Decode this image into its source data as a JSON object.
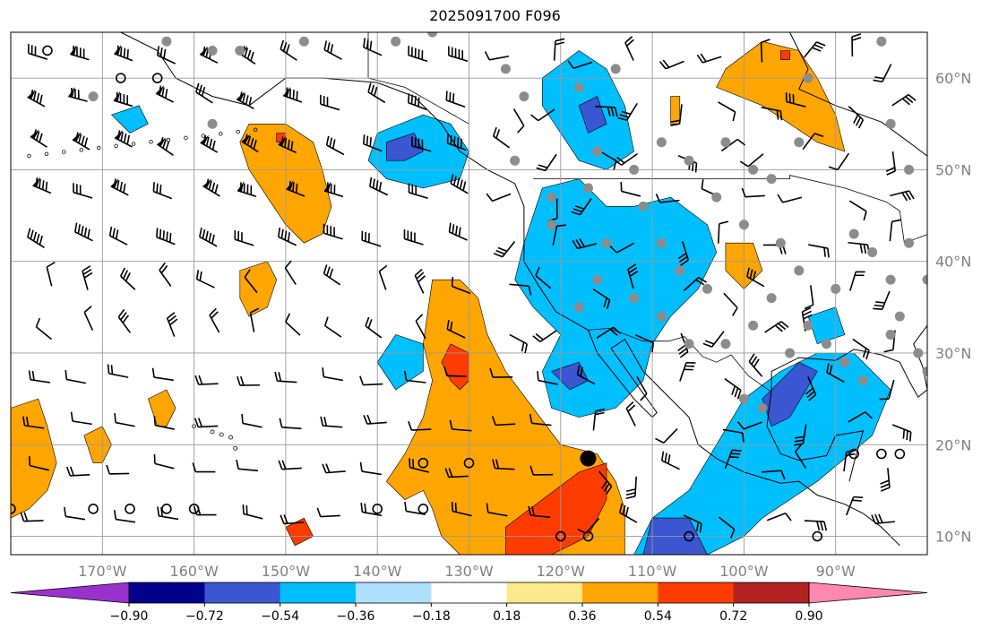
{
  "title": "2025091700 F096",
  "map": {
    "lon_range": [
      -180,
      -80
    ],
    "lat_range": [
      8,
      65
    ],
    "lon_ticks": [
      -170,
      -160,
      -150,
      -140,
      -130,
      -120,
      -110,
      -100,
      -90
    ],
    "lon_labels": [
      "170°W",
      "160°W",
      "150°W",
      "140°W",
      "130°W",
      "120°W",
      "110°W",
      "100°W",
      "90°W"
    ],
    "lat_ticks": [
      10,
      20,
      30,
      40,
      50,
      60
    ],
    "lat_labels": [
      "10°N",
      "20°N",
      "30°N",
      "40°N",
      "50°N",
      "60°N"
    ],
    "grid": true,
    "tick_label_color": "#808080"
  },
  "colorbar": {
    "levels": [
      "−0.90",
      "−0.72",
      "−0.54",
      "−0.36",
      "−0.18",
      "0.18",
      "0.36",
      "0.54",
      "0.72",
      "0.90"
    ],
    "colors": [
      "#9932cc",
      "#00008b",
      "#3a56d0",
      "#00bfff",
      "#b0e0ff",
      "#ffffff",
      "#ffe88a",
      "#ffa500",
      "#ff3c00",
      "#b22222",
      "#ff88b0"
    ],
    "extend": "both"
  },
  "fields": {
    "positive_regions": [
      {
        "name": "nw-pacific-blob",
        "color": "#ffa500",
        "points": [
          [
            -154,
            55
          ],
          [
            -150,
            55
          ],
          [
            -147,
            53
          ],
          [
            -146,
            50
          ],
          [
            -145,
            46
          ],
          [
            -146,
            43
          ],
          [
            -148,
            42
          ],
          [
            -150,
            44
          ],
          [
            -152,
            47
          ],
          [
            -154,
            50
          ],
          [
            -155,
            53
          ]
        ]
      },
      {
        "name": "nw-pacific-core",
        "color": "#ff3c00",
        "points": [
          [
            -151,
            54
          ],
          [
            -150,
            54
          ],
          [
            -150,
            53
          ],
          [
            -151,
            53
          ]
        ]
      },
      {
        "name": "hawaii-ne-blob",
        "color": "#ffa500",
        "points": [
          [
            -155,
            39
          ],
          [
            -152,
            40
          ],
          [
            -151,
            38
          ],
          [
            -152,
            35
          ],
          [
            -154,
            34
          ],
          [
            -155,
            36
          ]
        ]
      },
      {
        "name": "central-pacific-plume",
        "color": "#ffa500",
        "points": [
          [
            -134,
            38
          ],
          [
            -131,
            38
          ],
          [
            -129,
            36
          ],
          [
            -128,
            32
          ],
          [
            -126,
            28
          ],
          [
            -123,
            24
          ],
          [
            -120,
            20
          ],
          [
            -116,
            19
          ],
          [
            -114,
            16
          ],
          [
            -113,
            13
          ],
          [
            -113,
            8
          ],
          [
            -123,
            8
          ],
          [
            -128,
            8
          ],
          [
            -131,
            8
          ],
          [
            -133,
            10
          ],
          [
            -134,
            13
          ],
          [
            -135,
            15
          ],
          [
            -137,
            14
          ],
          [
            -139,
            16
          ],
          [
            -137,
            19
          ],
          [
            -135,
            23
          ],
          [
            -134,
            27
          ],
          [
            -135,
            31
          ]
        ]
      },
      {
        "name": "plume-core-north",
        "color": "#ff3c00",
        "points": [
          [
            -132,
            31
          ],
          [
            -130,
            30
          ],
          [
            -130,
            27
          ],
          [
            -131,
            26
          ],
          [
            -132,
            27
          ],
          [
            -133,
            29
          ]
        ]
      },
      {
        "name": "plume-core-south",
        "color": "#ff3c00",
        "points": [
          [
            -126,
            8
          ],
          [
            -126,
            11
          ],
          [
            -122,
            14
          ],
          [
            -118,
            17
          ],
          [
            -115,
            18
          ],
          [
            -115,
            14
          ],
          [
            -117,
            10
          ],
          [
            -119,
            9
          ],
          [
            -121,
            8
          ]
        ]
      },
      {
        "name": "west-pacific-strip",
        "color": "#ffa500",
        "points": [
          [
            -180,
            24
          ],
          [
            -177,
            25
          ],
          [
            -176,
            22
          ],
          [
            -175,
            18
          ],
          [
            -176,
            15
          ],
          [
            -178,
            13
          ],
          [
            -180,
            12
          ]
        ]
      },
      {
        "name": "west-pacific-bits",
        "color": "#ffa500",
        "points": [
          [
            -172,
            21
          ],
          [
            -170,
            22
          ],
          [
            -169,
            20
          ],
          [
            -170,
            18
          ],
          [
            -171,
            18
          ]
        ]
      },
      {
        "name": "southwest-bits",
        "color": "#ffa500",
        "points": [
          [
            -165,
            25
          ],
          [
            -163,
            26
          ],
          [
            -162,
            24
          ],
          [
            -163,
            22
          ],
          [
            -164,
            22
          ]
        ]
      },
      {
        "name": "canada-blob",
        "color": "#ffa500",
        "points": [
          [
            -102,
            61
          ],
          [
            -98,
            64
          ],
          [
            -94,
            63
          ],
          [
            -92,
            60
          ],
          [
            -90,
            56
          ],
          [
            -89,
            52
          ],
          [
            -92,
            53
          ],
          [
            -95,
            55
          ],
          [
            -98,
            57
          ],
          [
            -103,
            59
          ]
        ]
      },
      {
        "name": "canada-core",
        "color": "#ff3c00",
        "points": [
          [
            -96,
            63
          ],
          [
            -95,
            63
          ],
          [
            -95,
            62
          ],
          [
            -96,
            62
          ]
        ]
      },
      {
        "name": "idaho-bit",
        "color": "#ffa500",
        "points": [
          [
            -108,
            58
          ],
          [
            -107,
            58
          ],
          [
            -107,
            55
          ],
          [
            -108,
            55
          ]
        ]
      },
      {
        "name": "kansas-blob",
        "color": "#ffa500",
        "points": [
          [
            -102,
            42
          ],
          [
            -99,
            42
          ],
          [
            -98,
            39
          ],
          [
            -100,
            37
          ],
          [
            -102,
            39
          ]
        ]
      },
      {
        "name": "south-pacific-bit",
        "color": "#ff3c00",
        "points": [
          [
            -150,
            11
          ],
          [
            -148,
            12
          ],
          [
            -147,
            10
          ],
          [
            -149,
            9
          ]
        ]
      }
    ],
    "negative_regions": [
      {
        "name": "gulf-of-alaska",
        "color": "#00bfff",
        "points": [
          [
            -140,
            54
          ],
          [
            -135,
            56
          ],
          [
            -132,
            55
          ],
          [
            -130,
            52
          ],
          [
            -131,
            49
          ],
          [
            -135,
            48
          ],
          [
            -139,
            49
          ],
          [
            -141,
            51
          ]
        ]
      },
      {
        "name": "gulf-of-alaska-core",
        "color": "#3a56d0",
        "points": [
          [
            -139,
            53
          ],
          [
            -136,
            54
          ],
          [
            -135,
            52
          ],
          [
            -137,
            51
          ],
          [
            -139,
            51
          ]
        ]
      },
      {
        "name": "aleutian-bit",
        "color": "#00bfff",
        "points": [
          [
            -169,
            56
          ],
          [
            -166,
            57
          ],
          [
            -165,
            55
          ],
          [
            -167,
            54
          ]
        ]
      },
      {
        "name": "british-columbia",
        "color": "#00bfff",
        "points": [
          [
            -122,
            60
          ],
          [
            -118,
            63
          ],
          [
            -115,
            61
          ],
          [
            -113,
            57
          ],
          [
            -112,
            52
          ],
          [
            -115,
            50
          ],
          [
            -118,
            51
          ],
          [
            -120,
            54
          ],
          [
            -122,
            57
          ]
        ]
      },
      {
        "name": "bc-core",
        "color": "#3a56d0",
        "points": [
          [
            -118,
            57
          ],
          [
            -116,
            58
          ],
          [
            -115,
            55
          ],
          [
            -117,
            54
          ]
        ]
      },
      {
        "name": "western-us",
        "color": "#00bfff",
        "points": [
          [
            -122,
            48
          ],
          [
            -118,
            49
          ],
          [
            -115,
            46
          ],
          [
            -112,
            46
          ],
          [
            -108,
            47
          ],
          [
            -104,
            44
          ],
          [
            -103,
            41
          ],
          [
            -105,
            37
          ],
          [
            -108,
            34
          ],
          [
            -110,
            31
          ],
          [
            -111,
            27
          ],
          [
            -114,
            24
          ],
          [
            -118,
            23
          ],
          [
            -121,
            24
          ],
          [
            -122,
            28
          ],
          [
            -120,
            32
          ],
          [
            -123,
            35
          ],
          [
            -125,
            38
          ],
          [
            -124,
            42
          ]
        ]
      },
      {
        "name": "western-us-core",
        "color": "#3a56d0",
        "points": [
          [
            -121,
            28
          ],
          [
            -118,
            29
          ],
          [
            -117,
            27
          ],
          [
            -119,
            26
          ]
        ]
      },
      {
        "name": "pacific-blue-spot",
        "color": "#00bfff",
        "points": [
          [
            -140,
            29
          ],
          [
            -138,
            32
          ],
          [
            -135,
            31
          ],
          [
            -135,
            28
          ],
          [
            -138,
            26
          ]
        ]
      },
      {
        "name": "mexico-central-america",
        "color": "#00bfff",
        "points": [
          [
            -112,
            8
          ],
          [
            -110,
            12
          ],
          [
            -106,
            15
          ],
          [
            -103,
            20
          ],
          [
            -100,
            25
          ],
          [
            -96,
            28
          ],
          [
            -92,
            30
          ],
          [
            -88,
            30
          ],
          [
            -84,
            26
          ],
          [
            -86,
            21
          ],
          [
            -92,
            16
          ],
          [
            -95,
            14
          ],
          [
            -98,
            12
          ],
          [
            -100,
            10
          ],
          [
            -104,
            8
          ]
        ]
      },
      {
        "name": "mexico-core",
        "color": "#3a56d0",
        "points": [
          [
            -111,
            8
          ],
          [
            -110,
            12
          ],
          [
            -106,
            12
          ],
          [
            -104,
            8
          ]
        ]
      },
      {
        "name": "gulf-core",
        "color": "#3a56d0",
        "points": [
          [
            -98,
            25
          ],
          [
            -94,
            29
          ],
          [
            -92,
            28
          ],
          [
            -95,
            23
          ],
          [
            -97,
            22
          ]
        ]
      },
      {
        "name": "east-us-spot",
        "color": "#00bfff",
        "points": [
          [
            -93,
            34
          ],
          [
            -90,
            35
          ],
          [
            -89,
            32
          ],
          [
            -92,
            31
          ]
        ]
      }
    ]
  },
  "markers": {
    "gray_dots": [
      [
        -163,
        64
      ],
      [
        -158,
        63
      ],
      [
        -148,
        64
      ],
      [
        -138,
        64
      ],
      [
        -134,
        65
      ],
      [
        -126,
        61
      ],
      [
        -124,
        58
      ],
      [
        -118,
        59
      ],
      [
        -114,
        61
      ],
      [
        -116,
        52
      ],
      [
        -112,
        50
      ],
      [
        -109,
        53
      ],
      [
        -106,
        51
      ],
      [
        -102,
        53
      ],
      [
        -99,
        50
      ],
      [
        -97,
        49
      ],
      [
        -93,
        60
      ],
      [
        -94,
        53
      ],
      [
        -85,
        64
      ],
      [
        -84,
        55
      ],
      [
        -82,
        50
      ],
      [
        -171,
        58
      ],
      [
        -158,
        55
      ],
      [
        -155,
        63
      ],
      [
        -125,
        51
      ],
      [
        -121,
        47
      ],
      [
        -117,
        48
      ],
      [
        -111,
        46
      ],
      [
        -109,
        42
      ],
      [
        -103,
        47
      ],
      [
        -100,
        44
      ],
      [
        -96,
        42
      ],
      [
        -94,
        39
      ],
      [
        -90,
        37
      ],
      [
        -88,
        43
      ],
      [
        -86,
        41
      ],
      [
        -84,
        38
      ],
      [
        -82,
        42
      ],
      [
        -80,
        38
      ],
      [
        -99,
        33
      ],
      [
        -102,
        31
      ],
      [
        -95,
        30
      ],
      [
        -93,
        33
      ],
      [
        -89,
        29
      ],
      [
        -87,
        27
      ],
      [
        -84,
        32
      ],
      [
        -83,
        34
      ],
      [
        -81,
        30
      ],
      [
        -100,
        25
      ],
      [
        -98,
        24
      ],
      [
        -106,
        31
      ],
      [
        -109,
        34
      ],
      [
        -112,
        36
      ],
      [
        -116,
        38
      ],
      [
        -118,
        35
      ],
      [
        -121,
        44
      ],
      [
        -115,
        42
      ],
      [
        -107,
        39
      ],
      [
        -104,
        37
      ],
      [
        -97,
        36
      ],
      [
        -91,
        31
      ],
      [
        -80,
        28
      ]
    ],
    "open_circles": [
      [
        -180,
        13
      ],
      [
        -171,
        13
      ],
      [
        -167,
        13
      ],
      [
        -163,
        13
      ],
      [
        -160,
        13
      ],
      [
        -140,
        13
      ],
      [
        -135,
        13
      ],
      [
        -135,
        18
      ],
      [
        -130,
        18
      ],
      [
        -117,
        10
      ],
      [
        -120,
        10
      ],
      [
        -106,
        10
      ],
      [
        -92,
        10
      ],
      [
        -88,
        19
      ],
      [
        -85,
        19
      ],
      [
        -83,
        19
      ],
      [
        -176,
        63
      ],
      [
        -168,
        60
      ],
      [
        -164,
        60
      ]
    ],
    "big_black_dot": [
      -117,
      18.5
    ]
  }
}
